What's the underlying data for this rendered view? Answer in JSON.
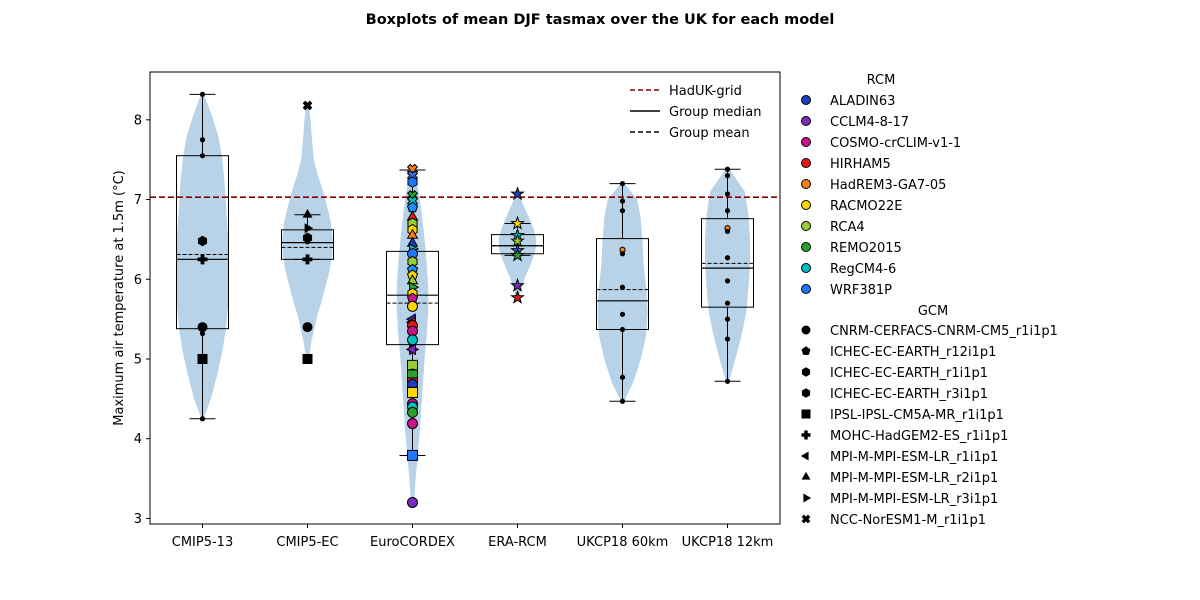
{
  "chart_data": {
    "type": "box-violin",
    "title": "Boxplots of mean DJF tasmax over the UK for each model",
    "ylabel": "Maximum air temperature at 1.5m (°C)",
    "xlabel": "",
    "ylim": [
      2.93,
      8.6
    ],
    "yticks": [
      3,
      4,
      5,
      6,
      7,
      8
    ],
    "reference_line": {
      "label": "HadUK-grid",
      "value": 7.03,
      "color": "#8b0000"
    },
    "legend_lines": [
      {
        "label": "HadUK-grid",
        "style": "dashed",
        "color": "#8b0000"
      },
      {
        "label": "Group median",
        "style": "solid",
        "color": "#000000"
      },
      {
        "label": "Group mean",
        "style": "dashed",
        "color": "#000000"
      }
    ],
    "categories": [
      "CMIP5-13",
      "CMIP5-EC",
      "EuroCORDEX",
      "ERA-RCM",
      "UKCP18 60km",
      "UKCP18 12km"
    ],
    "violin_color": "#b8d3e8",
    "groups": [
      {
        "name": "CMIP5-13",
        "box": {
          "q1": 5.38,
          "median": 6.25,
          "q3": 7.55,
          "mean": 6.31,
          "whisker_low": 4.25,
          "whisker_high": 8.32
        },
        "violin": {
          "y": [
            4.25,
            4.5,
            4.8,
            5.1,
            5.4,
            5.7,
            6.0,
            6.3,
            6.6,
            6.9,
            7.2,
            7.5,
            7.8,
            8.05,
            8.32
          ],
          "w": [
            0.02,
            0.16,
            0.28,
            0.38,
            0.45,
            0.49,
            0.5,
            0.5,
            0.48,
            0.45,
            0.42,
            0.38,
            0.3,
            0.18,
            0.03
          ]
        },
        "points": [
          {
            "y": 8.32,
            "marker": "dot",
            "color": "#000000"
          },
          {
            "y": 7.75,
            "marker": "dot",
            "color": "#000000"
          },
          {
            "y": 7.55,
            "marker": "dot",
            "color": "#000000"
          },
          {
            "y": 6.48,
            "marker": "hexagon",
            "color": "#000000"
          },
          {
            "y": 6.46,
            "marker": "dot",
            "color": "#000000"
          },
          {
            "y": 6.25,
            "marker": "plus",
            "color": "#000000"
          },
          {
            "y": 5.4,
            "marker": "circle",
            "color": "#000000"
          },
          {
            "y": 5.36,
            "marker": "dot",
            "color": "#000000"
          },
          {
            "y": 5.32,
            "marker": "dot",
            "color": "#000000"
          },
          {
            "y": 5.0,
            "marker": "square",
            "color": "#000000"
          },
          {
            "y": 4.25,
            "marker": "dot",
            "color": "#000000"
          }
        ]
      },
      {
        "name": "CMIP5-EC",
        "box": {
          "q1": 6.25,
          "median": 6.46,
          "q3": 6.62,
          "mean": 6.4,
          "whisker_low": 6.25,
          "whisker_high": 6.81
        },
        "violin": {
          "y": [
            4.98,
            5.2,
            5.5,
            5.8,
            6.1,
            6.3,
            6.5,
            6.7,
            6.9,
            7.1,
            7.3,
            7.5,
            7.8,
            8.0,
            8.18
          ],
          "w": [
            0.02,
            0.07,
            0.17,
            0.3,
            0.42,
            0.47,
            0.48,
            0.45,
            0.38,
            0.3,
            0.2,
            0.12,
            0.08,
            0.06,
            0.02
          ]
        },
        "points": [
          {
            "y": 8.18,
            "marker": "x",
            "color": "#000000"
          },
          {
            "y": 6.81,
            "marker": "triangle-up",
            "color": "#000000"
          },
          {
            "y": 6.64,
            "marker": "triangle-right",
            "color": "#000000"
          },
          {
            "y": 6.52,
            "marker": "hexagon",
            "color": "#000000"
          },
          {
            "y": 6.47,
            "marker": "dot",
            "color": "#000000"
          },
          {
            "y": 6.25,
            "marker": "plus",
            "color": "#000000"
          },
          {
            "y": 5.4,
            "marker": "circle",
            "color": "#000000"
          },
          {
            "y": 5.0,
            "marker": "square",
            "color": "#000000"
          }
        ]
      },
      {
        "name": "EuroCORDEX",
        "box": {
          "q1": 5.18,
          "median": 5.8,
          "q3": 6.35,
          "mean": 5.7,
          "whisker_low": 3.79,
          "whisker_high": 7.37
        },
        "violin": {
          "y": [
            3.2,
            3.5,
            3.8,
            4.1,
            4.4,
            4.7,
            5.0,
            5.3,
            5.6,
            5.9,
            6.2,
            6.5,
            6.8,
            7.1,
            7.38
          ],
          "w": [
            0.03,
            0.06,
            0.1,
            0.14,
            0.17,
            0.2,
            0.23,
            0.27,
            0.3,
            0.3,
            0.27,
            0.23,
            0.18,
            0.12,
            0.04
          ]
        },
        "points": [
          {
            "y": 7.38,
            "marker": "x",
            "color": "#ff7f0e"
          },
          {
            "y": 7.3,
            "marker": "x",
            "color": "#4169e1"
          },
          {
            "y": 7.22,
            "marker": "hexagon",
            "color": "#1f77ff"
          },
          {
            "y": 7.05,
            "marker": "x",
            "color": "#2ca02c"
          },
          {
            "y": 6.98,
            "marker": "x",
            "color": "#00bfbf"
          },
          {
            "y": 6.9,
            "marker": "pentagon",
            "color": "#1e90ff"
          },
          {
            "y": 6.78,
            "marker": "triangle-up",
            "color": "#e31a1c"
          },
          {
            "y": 6.7,
            "marker": "hexagon",
            "color": "#9acd32"
          },
          {
            "y": 6.62,
            "marker": "hexagon",
            "color": "#ffd700"
          },
          {
            "y": 6.55,
            "marker": "triangle-up",
            "color": "#ff7f0e"
          },
          {
            "y": 6.45,
            "marker": "triangle-up",
            "color": "#1f3fbf"
          },
          {
            "y": 6.38,
            "marker": "triangle-right",
            "color": "#00bfbf"
          },
          {
            "y": 6.32,
            "marker": "circle",
            "color": "#1f77ff"
          },
          {
            "y": 6.22,
            "marker": "hexagon",
            "color": "#9acd32"
          },
          {
            "y": 6.12,
            "marker": "pentagon",
            "color": "#1e90ff"
          },
          {
            "y": 6.05,
            "marker": "pentagon",
            "color": "#ffd700"
          },
          {
            "y": 5.98,
            "marker": "triangle-up",
            "color": "#9acd32"
          },
          {
            "y": 5.9,
            "marker": "triangle-right",
            "color": "#2ca02c"
          },
          {
            "y": 5.82,
            "marker": "hexagon",
            "color": "#ffd700"
          },
          {
            "y": 5.76,
            "marker": "pentagon",
            "color": "#c71585"
          },
          {
            "y": 5.66,
            "marker": "circle",
            "color": "#ffd700"
          },
          {
            "y": 5.5,
            "marker": "triangle-left",
            "color": "#1f3fbf"
          },
          {
            "y": 5.46,
            "marker": "triangle-left",
            "color": "#e31a1c"
          },
          {
            "y": 5.42,
            "marker": "circle",
            "color": "#e31a1c"
          },
          {
            "y": 5.35,
            "marker": "circle",
            "color": "#c71585"
          },
          {
            "y": 5.24,
            "marker": "circle",
            "color": "#00bfbf"
          },
          {
            "y": 5.12,
            "marker": "triangle-right",
            "color": "#c71585"
          },
          {
            "y": 5.12,
            "marker": "triangle-left",
            "color": "#7b2cbf"
          },
          {
            "y": 4.92,
            "marker": "square",
            "color": "#9acd32"
          },
          {
            "y": 4.81,
            "marker": "circle",
            "color": "#1f3fbf"
          },
          {
            "y": 4.8,
            "marker": "square",
            "color": "#2ca02c"
          },
          {
            "y": 4.7,
            "marker": "square",
            "color": "#e31a1c"
          },
          {
            "y": 4.68,
            "marker": "circle",
            "color": "#1f3fbf"
          },
          {
            "y": 4.58,
            "marker": "square",
            "color": "#ffd700"
          },
          {
            "y": 4.44,
            "marker": "circle",
            "color": "#c71585"
          },
          {
            "y": 4.4,
            "marker": "circle",
            "color": "#00bfbf"
          },
          {
            "y": 4.33,
            "marker": "circle",
            "color": "#2ca02c"
          },
          {
            "y": 4.19,
            "marker": "circle",
            "color": "#c71585"
          },
          {
            "y": 3.79,
            "marker": "square",
            "color": "#1f77ff"
          },
          {
            "y": 3.2,
            "marker": "circle",
            "color": "#7b2cbf"
          }
        ]
      },
      {
        "name": "ERA-RCM",
        "box": {
          "q1": 6.32,
          "median": 6.42,
          "q3": 6.56,
          "mean": 6.42,
          "whisker_low": 6.3,
          "whisker_high": 6.7
        },
        "violin": {
          "y": [
            5.77,
            5.9,
            6.05,
            6.2,
            6.35,
            6.5,
            6.65,
            6.8,
            6.95,
            7.07
          ],
          "w": [
            0.03,
            0.08,
            0.16,
            0.26,
            0.34,
            0.36,
            0.3,
            0.2,
            0.1,
            0.03
          ]
        },
        "points": [
          {
            "y": 7.07,
            "marker": "star",
            "color": "#1f3fbf"
          },
          {
            "y": 6.7,
            "marker": "star",
            "color": "#ffd700"
          },
          {
            "y": 6.55,
            "marker": "star",
            "color": "#00bfbf"
          },
          {
            "y": 6.48,
            "marker": "star",
            "color": "#9acd32"
          },
          {
            "y": 6.36,
            "marker": "star",
            "color": "#1f77ff"
          },
          {
            "y": 6.3,
            "marker": "star",
            "color": "#2ca02c"
          },
          {
            "y": 5.92,
            "marker": "star",
            "color": "#7b2cbf"
          },
          {
            "y": 5.77,
            "marker": "star",
            "color": "#e31a1c"
          }
        ]
      },
      {
        "name": "UKCP18 60km",
        "box": {
          "q1": 5.37,
          "median": 5.73,
          "q3": 6.51,
          "mean": 5.87,
          "whisker_low": 4.47,
          "whisker_high": 7.2
        },
        "violin": {
          "y": [
            4.47,
            4.7,
            5.0,
            5.3,
            5.6,
            5.9,
            6.2,
            6.5,
            6.8,
            7.0,
            7.2
          ],
          "w": [
            0.03,
            0.2,
            0.35,
            0.45,
            0.48,
            0.45,
            0.4,
            0.38,
            0.34,
            0.28,
            0.04
          ]
        },
        "points": [
          {
            "y": 7.2,
            "marker": "dot",
            "color": "#000000"
          },
          {
            "y": 6.98,
            "marker": "dot",
            "color": "#000000"
          },
          {
            "y": 6.86,
            "marker": "dot",
            "color": "#000000"
          },
          {
            "y": 6.37,
            "marker": "dot",
            "color": "#ff7f0e"
          },
          {
            "y": 6.32,
            "marker": "dot",
            "color": "#000000"
          },
          {
            "y": 5.9,
            "marker": "dot",
            "color": "#000000"
          },
          {
            "y": 5.56,
            "marker": "dot",
            "color": "#000000"
          },
          {
            "y": 5.37,
            "marker": "dot",
            "color": "#000000"
          },
          {
            "y": 4.77,
            "marker": "dot",
            "color": "#000000"
          },
          {
            "y": 4.47,
            "marker": "dot",
            "color": "#000000"
          }
        ]
      },
      {
        "name": "UKCP18 12km",
        "box": {
          "q1": 5.65,
          "median": 6.14,
          "q3": 6.76,
          "mean": 6.2,
          "whisker_low": 4.72,
          "whisker_high": 7.38
        },
        "violin": {
          "y": [
            4.72,
            5.0,
            5.3,
            5.6,
            5.9,
            6.2,
            6.5,
            6.8,
            7.1,
            7.38
          ],
          "w": [
            0.03,
            0.15,
            0.27,
            0.36,
            0.4,
            0.43,
            0.43,
            0.4,
            0.33,
            0.04
          ]
        },
        "points": [
          {
            "y": 7.38,
            "marker": "dot",
            "color": "#000000"
          },
          {
            "y": 7.3,
            "marker": "dot",
            "color": "#000000"
          },
          {
            "y": 7.07,
            "marker": "dot",
            "color": "#000000"
          },
          {
            "y": 6.86,
            "marker": "dot",
            "color": "#000000"
          },
          {
            "y": 6.64,
            "marker": "dot",
            "color": "#ff7f0e"
          },
          {
            "y": 6.6,
            "marker": "dot",
            "color": "#000000"
          },
          {
            "y": 6.27,
            "marker": "dot",
            "color": "#000000"
          },
          {
            "y": 5.98,
            "marker": "dot",
            "color": "#000000"
          },
          {
            "y": 5.7,
            "marker": "dot",
            "color": "#000000"
          },
          {
            "y": 5.5,
            "marker": "dot",
            "color": "#000000"
          },
          {
            "y": 5.25,
            "marker": "dot",
            "color": "#000000"
          },
          {
            "y": 4.72,
            "marker": "dot",
            "color": "#000000"
          }
        ]
      }
    ],
    "legend_rcm": {
      "title": "RCM",
      "items": [
        {
          "label": "ALADIN63",
          "color": "#1f3fbf"
        },
        {
          "label": "CCLM4-8-17",
          "color": "#7b2cbf"
        },
        {
          "label": "COSMO-crCLIM-v1-1",
          "color": "#c71585"
        },
        {
          "label": "HIRHAM5",
          "color": "#e31a1c"
        },
        {
          "label": "HadREM3-GA7-05",
          "color": "#ff7f0e"
        },
        {
          "label": "RACMO22E",
          "color": "#ffd700"
        },
        {
          "label": "RCA4",
          "color": "#9acd32"
        },
        {
          "label": "REMO2015",
          "color": "#2ca02c"
        },
        {
          "label": "RegCM4-6",
          "color": "#00bfbf"
        },
        {
          "label": "WRF381P",
          "color": "#1f77ff"
        }
      ]
    },
    "legend_gcm": {
      "title": "GCM",
      "items": [
        {
          "label": "CNRM-CERFACS-CNRM-CM5_r1i1p1",
          "marker": "circle"
        },
        {
          "label": "ICHEC-EC-EARTH_r12i1p1",
          "marker": "pentagon"
        },
        {
          "label": "ICHEC-EC-EARTH_r1i1p1",
          "marker": "hexagon"
        },
        {
          "label": "ICHEC-EC-EARTH_r3i1p1",
          "marker": "hexagon"
        },
        {
          "label": "IPSL-IPSL-CM5A-MR_r1i1p1",
          "marker": "square"
        },
        {
          "label": "MOHC-HadGEM2-ES_r1i1p1",
          "marker": "plus"
        },
        {
          "label": "MPI-M-MPI-ESM-LR_r1i1p1",
          "marker": "triangle-left"
        },
        {
          "label": "MPI-M-MPI-ESM-LR_r2i1p1",
          "marker": "triangle-up"
        },
        {
          "label": "MPI-M-MPI-ESM-LR_r3i1p1",
          "marker": "triangle-right"
        },
        {
          "label": "NCC-NorESM1-M_r1i1p1",
          "marker": "x"
        }
      ]
    }
  }
}
